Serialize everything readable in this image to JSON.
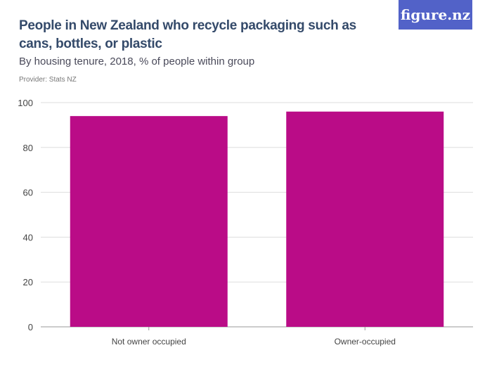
{
  "logo": "figure.nz",
  "chart_data": {
    "type": "bar",
    "title": "People in New Zealand who recycle packaging such as cans, bottles, or plastic",
    "subtitle": "By housing tenure, 2018, % of people within group",
    "provider": "Provider: Stats NZ",
    "categories": [
      "Not owner occupied",
      "Owner-occupied"
    ],
    "values": [
      94,
      96
    ],
    "ylim": [
      0,
      100
    ],
    "yticks": [
      0,
      20,
      40,
      60,
      80,
      100
    ],
    "grid": true,
    "color": "#ba0c87"
  }
}
